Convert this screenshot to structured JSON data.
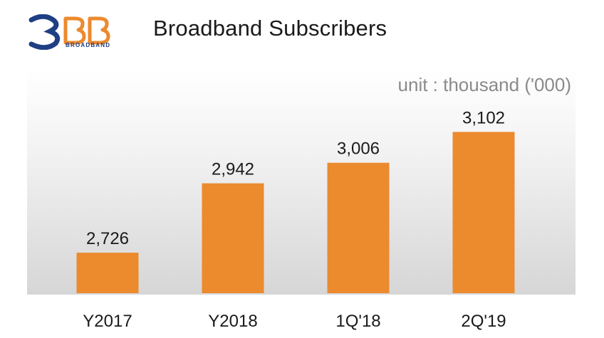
{
  "header": {
    "logo_text": "3BB",
    "logo_subtext": "BROADBAND",
    "title": "Broadband Subscribers"
  },
  "colors": {
    "bar": "#ec8a2e",
    "logo_blue": "#1f3f84",
    "logo_orange": "#ec8a2e"
  },
  "chart_data": {
    "type": "bar",
    "title": "Broadband Subscribers",
    "unit_note": "unit : thousand ('000)",
    "categories": [
      "Y2017",
      "Y2018",
      "1Q'18",
      "2Q'19"
    ],
    "values": [
      2726,
      2942,
      3006,
      3102
    ],
    "value_labels": [
      "2,726",
      "2,942",
      "3,006",
      "3,102"
    ],
    "ylim": [
      2600,
      3300
    ],
    "grid": false,
    "legend": "none"
  }
}
